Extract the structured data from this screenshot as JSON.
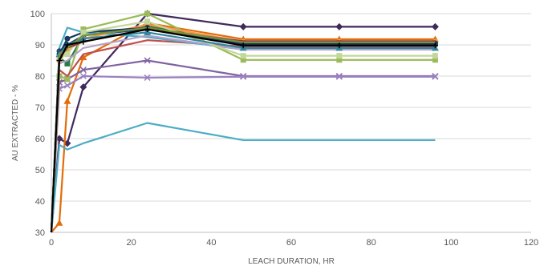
{
  "chart_data": {
    "type": "line",
    "xlabel": "LEACH DURATION, HR",
    "ylabel": "AU EXTRACTED - %",
    "xlim": [
      0,
      120
    ],
    "ylim": [
      30,
      100
    ],
    "xticks": [
      0,
      20,
      40,
      60,
      80,
      100,
      120
    ],
    "yticks": [
      30,
      40,
      50,
      60,
      70,
      80,
      90,
      100
    ],
    "xtick_labels": [
      "0",
      "20",
      "40",
      "60",
      "80",
      "100",
      "120"
    ],
    "ytick_labels": [
      "30",
      "40",
      "50",
      "60",
      "70",
      "80",
      "90",
      "100"
    ],
    "grid": "horizontal",
    "legend": "none",
    "series": [
      {
        "color": "#3f2a5c",
        "marker": "diamond",
        "x": [
          0,
          2,
          4,
          8,
          24,
          48,
          72,
          96
        ],
        "y": [
          30,
          60,
          58.5,
          76.5,
          100,
          95.8,
          95.8,
          95.8
        ]
      },
      {
        "color": "#2b7a4b",
        "marker": "square",
        "x": [
          0,
          2,
          4,
          8,
          24,
          48,
          72,
          96
        ],
        "y": [
          30,
          86,
          84,
          93,
          96,
          90.5,
          90.5,
          90.5
        ]
      },
      {
        "color": "#e36c09",
        "marker": "triangle",
        "x": [
          0,
          2,
          4,
          8,
          24,
          48,
          72,
          96
        ],
        "y": [
          30,
          33,
          72,
          86,
          97,
          91.8,
          91.8,
          91.8
        ]
      },
      {
        "color": "#8064a2",
        "marker": "x",
        "x": [
          0,
          2,
          4,
          8,
          24,
          48,
          72,
          96
        ],
        "y": [
          30,
          78,
          79,
          82,
          85,
          80,
          80,
          80
        ]
      },
      {
        "color": "#9b80c0",
        "marker": "x",
        "x": [
          0,
          2,
          4,
          8,
          24,
          48,
          72,
          96
        ],
        "y": [
          30,
          76,
          77,
          80,
          79.5,
          79.8,
          79.8,
          79.8
        ]
      },
      {
        "color": "#9bbb59",
        "marker": "square",
        "x": [
          0,
          2,
          4,
          8,
          24,
          48,
          72,
          96
        ],
        "y": [
          30,
          80,
          79,
          95,
          100,
          85.2,
          85.2,
          85.2
        ]
      },
      {
        "color": "#c0504d",
        "marker": "none",
        "x": [
          0,
          2,
          4,
          8,
          24,
          48,
          72,
          96
        ],
        "y": [
          30,
          82,
          80,
          87,
          91.5,
          89.5,
          89.5,
          89.5
        ]
      },
      {
        "color": "#4bacc6",
        "marker": "none",
        "x": [
          0,
          2,
          4,
          8,
          24,
          48,
          72,
          96
        ],
        "y": [
          30,
          58,
          56.5,
          58.5,
          65,
          59.5,
          59.5,
          59.5
        ]
      },
      {
        "color": "#4bacc6",
        "marker": "none",
        "x": [
          0,
          2,
          4,
          8,
          24,
          48,
          72,
          96
        ],
        "y": [
          30,
          89,
          95.5,
          94,
          92.5,
          88.5,
          88.5,
          88.5
        ]
      },
      {
        "color": "#1f497d",
        "marker": "circle",
        "x": [
          0,
          2,
          4,
          8,
          24,
          48,
          72,
          96
        ],
        "y": [
          30,
          88,
          90,
          93,
          95,
          90,
          90,
          90
        ]
      },
      {
        "color": "#f79646",
        "marker": "circle",
        "x": [
          0,
          2,
          4,
          8,
          24,
          48,
          72,
          96
        ],
        "y": [
          30,
          85,
          88,
          92,
          96.5,
          91,
          91,
          91
        ]
      },
      {
        "color": "#17375e",
        "marker": "circle",
        "x": [
          0,
          2,
          4,
          8,
          24,
          48,
          72,
          96
        ],
        "y": [
          30,
          87,
          92,
          94,
          95.5,
          90.5,
          90.5,
          90.5
        ]
      },
      {
        "color": "#b3a2c7",
        "marker": "none",
        "x": [
          0,
          2,
          4,
          8,
          24,
          48,
          72,
          96
        ],
        "y": [
          30,
          84,
          85,
          89,
          93,
          88.5,
          88.5,
          88.5
        ]
      },
      {
        "color": "#c3d69b",
        "marker": "square",
        "x": [
          0,
          2,
          4,
          8,
          24,
          48,
          72,
          96
        ],
        "y": [
          30,
          86,
          87,
          94,
          97.5,
          86.5,
          86.5,
          86.5
        ]
      },
      {
        "color": "#31859c",
        "marker": "triangle",
        "x": [
          0,
          2,
          4,
          8,
          24,
          48,
          72,
          96
        ],
        "y": [
          30,
          87,
          90,
          92,
          94,
          89,
          89,
          89
        ]
      },
      {
        "color": "#953735",
        "marker": "none",
        "x": [
          0,
          2,
          4,
          8,
          24,
          48,
          72,
          96
        ],
        "y": [
          30,
          86,
          89,
          91,
          95,
          91.2,
          91.2,
          91.2
        ]
      },
      {
        "color": "#77933c",
        "marker": "none",
        "x": [
          0,
          2,
          4,
          8,
          24,
          48,
          72,
          96
        ],
        "y": [
          30,
          87,
          89,
          93,
          95.5,
          90.8,
          90.8,
          90.8
        ]
      },
      {
        "color": "#000000",
        "marker": "plus",
        "x": [
          0,
          2,
          4,
          8,
          24,
          48,
          72,
          96
        ],
        "y": [
          30,
          85,
          90,
          91,
          95,
          89.8,
          89.8,
          89.8
        ]
      }
    ]
  }
}
